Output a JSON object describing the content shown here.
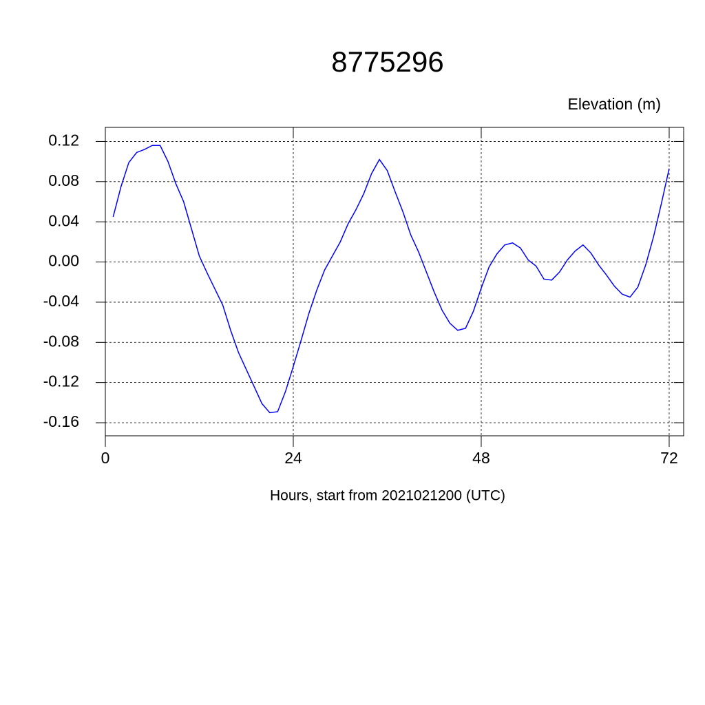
{
  "chart_data": {
    "type": "line",
    "title": "8775296",
    "y_label": "Elevation (m)",
    "x_label": "Hours, start from 2021021200 (UTC)",
    "x": [
      1,
      2,
      3,
      4,
      5,
      6,
      7,
      8,
      9,
      10,
      11,
      12,
      13,
      14,
      15,
      16,
      17,
      18,
      19,
      20,
      21,
      22,
      23,
      24,
      25,
      26,
      27,
      28,
      29,
      30,
      31,
      32,
      33,
      34,
      35,
      36,
      37,
      38,
      39,
      40,
      41,
      42,
      43,
      44,
      45,
      46,
      47,
      48,
      49,
      50,
      51,
      52,
      53,
      54,
      55,
      56,
      57,
      58,
      59,
      60,
      61,
      62,
      63,
      64,
      65,
      66,
      67,
      68,
      69,
      70,
      71,
      72
    ],
    "series": [
      {
        "name": "Elevation",
        "color": "#0000ff",
        "values": [
          0.045,
          0.075,
          0.099,
          0.109,
          0.112,
          0.116,
          0.116,
          0.1,
          0.078,
          0.06,
          0.033,
          0.006,
          -0.011,
          -0.027,
          -0.043,
          -0.068,
          -0.09,
          -0.107,
          -0.124,
          -0.141,
          -0.15,
          -0.149,
          -0.129,
          -0.104,
          -0.078,
          -0.051,
          -0.028,
          -0.008,
          0.006,
          0.02,
          0.038,
          0.052,
          0.068,
          0.088,
          0.102,
          0.091,
          0.07,
          0.05,
          0.027,
          0.01,
          -0.01,
          -0.03,
          -0.048,
          -0.061,
          -0.068,
          -0.066,
          -0.049,
          -0.026,
          -0.005,
          0.008,
          0.017,
          0.019,
          0.014,
          0.002,
          -0.004,
          -0.017,
          -0.018,
          -0.01,
          0.002,
          0.011,
          0.017,
          0.009,
          -0.003,
          -0.013,
          -0.024,
          -0.032,
          -0.035,
          -0.025,
          -0.003,
          0.025,
          0.058,
          0.093
        ]
      }
    ],
    "xlim": [
      0,
      73.85
    ],
    "ylim": [
      -0.173,
      0.134
    ],
    "xticks": [
      0,
      24,
      48,
      72
    ],
    "yticks": [
      0.12,
      0.08,
      0.04,
      {
        "value": 0,
        "label": "0.00"
      },
      -0.04,
      -0.08,
      -0.12,
      -0.16
    ],
    "grid": true
  }
}
